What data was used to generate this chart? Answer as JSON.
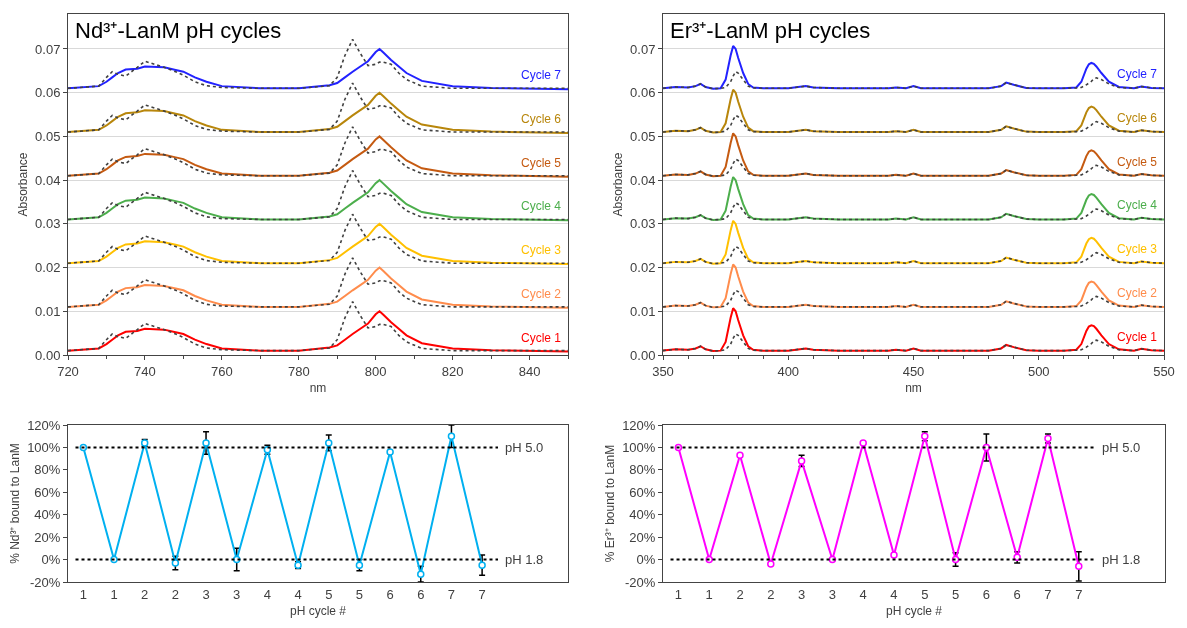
{
  "chart_data": [
    {
      "type": "line",
      "title": "Nd³⁺-LanM pH cycles",
      "xlabel": "nm",
      "ylabel": "Absorbance",
      "grid": "y",
      "legend": false,
      "line_style": "solid",
      "xlim": [
        720,
        850
      ],
      "xticks": [
        720,
        740,
        760,
        780,
        800,
        820,
        840
      ],
      "ylim": [
        0,
        0.078
      ],
      "yticks": [
        {
          "value": 0,
          "label": "0.00"
        },
        {
          "value": 0.01,
          "label": "0.01"
        },
        {
          "value": 0.02,
          "label": "0.02"
        },
        {
          "value": 0.03,
          "label": "0.03"
        },
        {
          "value": 0.04,
          "label": "0.04"
        },
        {
          "value": 0.05,
          "label": "0.05"
        },
        {
          "value": 0.06,
          "label": "0.06"
        },
        {
          "value": 0.07,
          "label": "0.07"
        }
      ],
      "x": [
        720,
        728,
        730,
        731.5,
        733,
        735,
        738,
        740,
        745,
        748,
        750,
        753,
        756,
        760,
        770,
        780,
        788,
        790,
        792,
        794,
        796,
        798,
        800,
        801,
        802,
        804,
        806,
        808,
        812,
        820,
        830,
        850
      ],
      "series": [
        {
          "name": "Cycle 1",
          "color": "#ff0000",
          "values": [
            0.001,
            0.0015,
            0.0025,
            0.0035,
            0.0045,
            0.0053,
            0.0055,
            0.006,
            0.0058,
            0.0052,
            0.0048,
            0.0035,
            0.0025,
            0.0015,
            0.001,
            0.001,
            0.0017,
            0.0022,
            0.0035,
            0.0048,
            0.006,
            0.0072,
            0.0093,
            0.01,
            0.0092,
            0.0075,
            0.006,
            0.0045,
            0.0027,
            0.0015,
            0.0011,
            0.0008
          ]
        },
        {
          "color": "#404040",
          "line_style": "dotted",
          "values": [
            0.001,
            0.0015,
            0.0035,
            0.0048,
            0.0042,
            0.0038,
            0.0058,
            0.0072,
            0.0058,
            0.0048,
            0.004,
            0.0025,
            0.0016,
            0.0012,
            0.001,
            0.001,
            0.0016,
            0.0035,
            0.0085,
            0.0122,
            0.009,
            0.0062,
            0.0065,
            0.007,
            0.007,
            0.0065,
            0.0045,
            0.003,
            0.0015,
            0.001,
            0.001,
            0.001
          ]
        },
        {
          "name": "Cycle 2",
          "color": "#ff8c4c",
          "values": [
            0.011,
            0.0115,
            0.0125,
            0.0135,
            0.0145,
            0.0153,
            0.0155,
            0.016,
            0.0158,
            0.0152,
            0.0148,
            0.0135,
            0.0125,
            0.0115,
            0.011,
            0.011,
            0.0117,
            0.0122,
            0.0135,
            0.0148,
            0.016,
            0.0172,
            0.0193,
            0.02,
            0.0192,
            0.0175,
            0.016,
            0.0145,
            0.0127,
            0.0115,
            0.0111,
            0.0108
          ]
        },
        {
          "color": "#404040",
          "line_style": "dotted",
          "values": [
            0.011,
            0.0115,
            0.0135,
            0.0148,
            0.0142,
            0.0138,
            0.0158,
            0.0172,
            0.0158,
            0.0148,
            0.014,
            0.0125,
            0.0116,
            0.0112,
            0.011,
            0.011,
            0.0116,
            0.0135,
            0.0185,
            0.0222,
            0.019,
            0.0162,
            0.0165,
            0.017,
            0.017,
            0.0165,
            0.0145,
            0.013,
            0.0115,
            0.011,
            0.011,
            0.011
          ]
        },
        {
          "name": "Cycle 3",
          "color": "#ffc000",
          "values": [
            0.021,
            0.0215,
            0.0225,
            0.0235,
            0.0245,
            0.0253,
            0.0255,
            0.026,
            0.0258,
            0.0252,
            0.0248,
            0.0235,
            0.0225,
            0.0215,
            0.021,
            0.021,
            0.0217,
            0.0222,
            0.0235,
            0.0248,
            0.026,
            0.0272,
            0.0293,
            0.03,
            0.0292,
            0.0275,
            0.026,
            0.0245,
            0.0227,
            0.0215,
            0.0211,
            0.0208
          ]
        },
        {
          "color": "#404040",
          "line_style": "dotted",
          "values": [
            0.021,
            0.0215,
            0.0235,
            0.0248,
            0.0242,
            0.0238,
            0.0258,
            0.0272,
            0.0258,
            0.0248,
            0.024,
            0.0225,
            0.0216,
            0.0212,
            0.021,
            0.021,
            0.0216,
            0.0235,
            0.0285,
            0.0322,
            0.029,
            0.0262,
            0.0265,
            0.027,
            0.027,
            0.0265,
            0.0245,
            0.023,
            0.0215,
            0.021,
            0.021,
            0.021
          ]
        },
        {
          "name": "Cycle 4",
          "color": "#4cae4c",
          "values": [
            0.031,
            0.0315,
            0.0325,
            0.0335,
            0.0345,
            0.0353,
            0.0355,
            0.036,
            0.0358,
            0.0352,
            0.0348,
            0.0335,
            0.0325,
            0.0315,
            0.031,
            0.031,
            0.0317,
            0.0322,
            0.0335,
            0.0348,
            0.036,
            0.0372,
            0.0393,
            0.04,
            0.0392,
            0.0375,
            0.036,
            0.0345,
            0.0327,
            0.0315,
            0.0311,
            0.0308
          ]
        },
        {
          "color": "#404040",
          "line_style": "dotted",
          "values": [
            0.031,
            0.0315,
            0.0335,
            0.0348,
            0.0342,
            0.0338,
            0.0358,
            0.0372,
            0.0358,
            0.0348,
            0.034,
            0.0325,
            0.0316,
            0.0312,
            0.031,
            0.031,
            0.0316,
            0.0335,
            0.0385,
            0.0422,
            0.039,
            0.0362,
            0.0365,
            0.037,
            0.037,
            0.0365,
            0.0345,
            0.033,
            0.0315,
            0.031,
            0.031,
            0.031
          ]
        },
        {
          "name": "Cycle 5",
          "color": "#c55a11",
          "values": [
            0.041,
            0.0415,
            0.0425,
            0.0435,
            0.0445,
            0.0453,
            0.0455,
            0.046,
            0.0458,
            0.0452,
            0.0448,
            0.0435,
            0.0425,
            0.0415,
            0.041,
            0.041,
            0.0417,
            0.0422,
            0.0435,
            0.0448,
            0.046,
            0.0472,
            0.0493,
            0.05,
            0.0492,
            0.0475,
            0.046,
            0.0445,
            0.0427,
            0.0415,
            0.0411,
            0.0408
          ]
        },
        {
          "color": "#404040",
          "line_style": "dotted",
          "values": [
            0.041,
            0.0415,
            0.0435,
            0.0448,
            0.0442,
            0.0438,
            0.0458,
            0.0472,
            0.0458,
            0.0448,
            0.044,
            0.0425,
            0.0416,
            0.0412,
            0.041,
            0.041,
            0.0416,
            0.0435,
            0.0485,
            0.0522,
            0.049,
            0.0462,
            0.0465,
            0.047,
            0.047,
            0.0465,
            0.0445,
            0.043,
            0.0415,
            0.041,
            0.041,
            0.041
          ]
        },
        {
          "name": "Cycle 6",
          "color": "#b8860b",
          "values": [
            0.051,
            0.0515,
            0.0525,
            0.0535,
            0.0545,
            0.0553,
            0.0555,
            0.056,
            0.0558,
            0.0552,
            0.0548,
            0.0535,
            0.0525,
            0.0515,
            0.051,
            0.051,
            0.0517,
            0.0522,
            0.0535,
            0.0548,
            0.056,
            0.0572,
            0.0593,
            0.06,
            0.0592,
            0.0575,
            0.056,
            0.0545,
            0.0527,
            0.0515,
            0.0511,
            0.0508
          ]
        },
        {
          "color": "#404040",
          "line_style": "dotted",
          "values": [
            0.051,
            0.0515,
            0.0535,
            0.0548,
            0.0542,
            0.0538,
            0.0558,
            0.0572,
            0.0558,
            0.0548,
            0.054,
            0.0525,
            0.0516,
            0.0512,
            0.051,
            0.051,
            0.0516,
            0.0535,
            0.0585,
            0.0622,
            0.059,
            0.0562,
            0.0565,
            0.057,
            0.057,
            0.0565,
            0.0545,
            0.053,
            0.0515,
            0.051,
            0.051,
            0.051
          ]
        },
        {
          "name": "Cycle 7",
          "color": "#2222ff",
          "values": [
            0.061,
            0.0615,
            0.0625,
            0.0635,
            0.0645,
            0.0653,
            0.0655,
            0.066,
            0.0658,
            0.0652,
            0.0648,
            0.0635,
            0.0625,
            0.0615,
            0.061,
            0.061,
            0.0617,
            0.0622,
            0.0635,
            0.0648,
            0.066,
            0.0672,
            0.0693,
            0.07,
            0.0692,
            0.0675,
            0.066,
            0.0645,
            0.0627,
            0.0615,
            0.0611,
            0.0608
          ]
        },
        {
          "color": "#404040",
          "line_style": "dotted",
          "values": [
            0.061,
            0.0615,
            0.0635,
            0.0648,
            0.0642,
            0.0638,
            0.0658,
            0.0672,
            0.0658,
            0.0648,
            0.064,
            0.0625,
            0.0616,
            0.0612,
            0.061,
            0.061,
            0.0616,
            0.0635,
            0.0685,
            0.0722,
            0.069,
            0.0662,
            0.0665,
            0.067,
            0.067,
            0.0665,
            0.0645,
            0.063,
            0.0615,
            0.061,
            0.061,
            0.061
          ]
        }
      ]
    },
    {
      "type": "line",
      "title": "Er³⁺-LanM pH cycles",
      "xlabel": "nm",
      "ylabel": "Absorbance",
      "grid": "y",
      "legend": false,
      "line_style": "solid",
      "xlim": [
        350,
        550
      ],
      "xticks": [
        350,
        400,
        450,
        500,
        550
      ],
      "ylim": [
        0,
        0.078
      ],
      "yticks": [
        {
          "value": 0,
          "label": "0.00"
        },
        {
          "value": 0.01,
          "label": "0.01"
        },
        {
          "value": 0.02,
          "label": "0.02"
        },
        {
          "value": 0.03,
          "label": "0.03"
        },
        {
          "value": 0.04,
          "label": "0.04"
        },
        {
          "value": 0.05,
          "label": "0.05"
        },
        {
          "value": 0.06,
          "label": "0.06"
        },
        {
          "value": 0.07,
          "label": "0.07"
        }
      ],
      "x": [
        350,
        355,
        360,
        363,
        365,
        367,
        370,
        373,
        375,
        377,
        378,
        379,
        380,
        382,
        384,
        386,
        390,
        400,
        407,
        410,
        420,
        440,
        443,
        447,
        450,
        453,
        460,
        480,
        485,
        487,
        490,
        495,
        500,
        510,
        515,
        517,
        519,
        520,
        521,
        522,
        523,
        525,
        528,
        532,
        538,
        541,
        545,
        550
      ],
      "series": [
        {
          "name": "Cycle 1",
          "color": "#ff0000",
          "values": [
            0.001,
            0.0013,
            0.0012,
            0.0015,
            0.002,
            0.0013,
            0.0009,
            0.001,
            0.003,
            0.0085,
            0.0107,
            0.01,
            0.008,
            0.0045,
            0.002,
            0.0012,
            0.001,
            0.001,
            0.0015,
            0.0012,
            0.001,
            0.001,
            0.0012,
            0.001,
            0.0015,
            0.001,
            0.001,
            0.001,
            0.0015,
            0.0023,
            0.0018,
            0.0011,
            0.001,
            0.001,
            0.0012,
            0.0025,
            0.0055,
            0.0065,
            0.0068,
            0.0066,
            0.006,
            0.0045,
            0.0025,
            0.0013,
            0.001,
            0.0014,
            0.0011,
            0.001
          ]
        },
        {
          "color": "#404040",
          "line_style": "dotted",
          "values": [
            0.001,
            0.0013,
            0.0012,
            0.0015,
            0.002,
            0.0013,
            0.0009,
            0.001,
            0.0012,
            0.0025,
            0.0038,
            0.0048,
            0.0045,
            0.003,
            0.0015,
            0.0011,
            0.001,
            0.001,
            0.0015,
            0.0012,
            0.001,
            0.001,
            0.0012,
            0.001,
            0.0015,
            0.001,
            0.001,
            0.001,
            0.0015,
            0.0023,
            0.0018,
            0.0011,
            0.001,
            0.001,
            0.0011,
            0.0012,
            0.0018,
            0.0022,
            0.0026,
            0.0032,
            0.0034,
            0.003,
            0.002,
            0.0012,
            0.001,
            0.0014,
            0.0011,
            0.001
          ]
        },
        {
          "name": "Cycle 2",
          "color": "#ff8c4c",
          "values": [
            0.011,
            0.0113,
            0.0112,
            0.0115,
            0.012,
            0.0113,
            0.0109,
            0.011,
            0.013,
            0.0185,
            0.0207,
            0.02,
            0.018,
            0.0145,
            0.012,
            0.0112,
            0.011,
            0.011,
            0.0115,
            0.0112,
            0.011,
            0.011,
            0.0112,
            0.011,
            0.0115,
            0.011,
            0.011,
            0.011,
            0.0115,
            0.0123,
            0.0118,
            0.0111,
            0.011,
            0.011,
            0.0112,
            0.0125,
            0.0155,
            0.0165,
            0.0168,
            0.0166,
            0.016,
            0.0145,
            0.0125,
            0.0113,
            0.011,
            0.0114,
            0.0111,
            0.011
          ]
        },
        {
          "color": "#404040",
          "line_style": "dotted",
          "values": [
            0.011,
            0.0113,
            0.0112,
            0.0115,
            0.012,
            0.0113,
            0.0109,
            0.011,
            0.0112,
            0.0125,
            0.0138,
            0.0148,
            0.0145,
            0.013,
            0.0115,
            0.0111,
            0.011,
            0.011,
            0.0115,
            0.0112,
            0.011,
            0.011,
            0.0112,
            0.011,
            0.0115,
            0.011,
            0.011,
            0.011,
            0.0115,
            0.0123,
            0.0118,
            0.0111,
            0.011,
            0.011,
            0.0111,
            0.0112,
            0.0118,
            0.0122,
            0.0126,
            0.0132,
            0.0134,
            0.013,
            0.012,
            0.0112,
            0.011,
            0.0114,
            0.0111,
            0.011
          ]
        },
        {
          "name": "Cycle 3",
          "color": "#ffc000",
          "values": [
            0.021,
            0.0213,
            0.0212,
            0.0215,
            0.022,
            0.0213,
            0.0209,
            0.021,
            0.023,
            0.0285,
            0.0307,
            0.03,
            0.028,
            0.0245,
            0.022,
            0.0212,
            0.021,
            0.021,
            0.0215,
            0.0212,
            0.021,
            0.021,
            0.0212,
            0.021,
            0.0215,
            0.021,
            0.021,
            0.021,
            0.0215,
            0.0223,
            0.0218,
            0.0211,
            0.021,
            0.021,
            0.0212,
            0.0225,
            0.0255,
            0.0265,
            0.0268,
            0.0266,
            0.026,
            0.0245,
            0.0225,
            0.0213,
            0.021,
            0.0214,
            0.0211,
            0.021
          ]
        },
        {
          "color": "#404040",
          "line_style": "dotted",
          "values": [
            0.021,
            0.0213,
            0.0212,
            0.0215,
            0.022,
            0.0213,
            0.0209,
            0.021,
            0.0212,
            0.0225,
            0.0238,
            0.0248,
            0.0245,
            0.023,
            0.0215,
            0.0211,
            0.021,
            0.021,
            0.0215,
            0.0212,
            0.021,
            0.021,
            0.0212,
            0.021,
            0.0215,
            0.021,
            0.021,
            0.021,
            0.0215,
            0.0223,
            0.0218,
            0.0211,
            0.021,
            0.021,
            0.0211,
            0.0212,
            0.0218,
            0.0222,
            0.0226,
            0.0232,
            0.0234,
            0.023,
            0.022,
            0.0212,
            0.021,
            0.0214,
            0.0211,
            0.021
          ]
        },
        {
          "name": "Cycle 4",
          "color": "#4cae4c",
          "values": [
            0.031,
            0.0313,
            0.0312,
            0.0315,
            0.032,
            0.0313,
            0.0309,
            0.031,
            0.033,
            0.0385,
            0.0407,
            0.04,
            0.038,
            0.0345,
            0.032,
            0.0312,
            0.031,
            0.031,
            0.0315,
            0.0312,
            0.031,
            0.031,
            0.0312,
            0.031,
            0.0315,
            0.031,
            0.031,
            0.031,
            0.0315,
            0.0323,
            0.0318,
            0.0311,
            0.031,
            0.031,
            0.0312,
            0.0325,
            0.0355,
            0.0365,
            0.0368,
            0.0366,
            0.036,
            0.0345,
            0.0325,
            0.0313,
            0.031,
            0.0314,
            0.0311,
            0.031
          ]
        },
        {
          "color": "#404040",
          "line_style": "dotted",
          "values": [
            0.031,
            0.0313,
            0.0312,
            0.0315,
            0.032,
            0.0313,
            0.0309,
            0.031,
            0.0312,
            0.0325,
            0.0338,
            0.0348,
            0.0345,
            0.033,
            0.0315,
            0.0311,
            0.031,
            0.031,
            0.0315,
            0.0312,
            0.031,
            0.031,
            0.0312,
            0.031,
            0.0315,
            0.031,
            0.031,
            0.031,
            0.0315,
            0.0323,
            0.0318,
            0.0311,
            0.031,
            0.031,
            0.0311,
            0.0312,
            0.0318,
            0.0322,
            0.0326,
            0.0332,
            0.0334,
            0.033,
            0.032,
            0.0312,
            0.031,
            0.0314,
            0.0311,
            0.031
          ]
        },
        {
          "name": "Cycle 5",
          "color": "#c55a11",
          "values": [
            0.041,
            0.0413,
            0.0412,
            0.0415,
            0.042,
            0.0413,
            0.0409,
            0.041,
            0.043,
            0.0485,
            0.0507,
            0.05,
            0.048,
            0.0445,
            0.042,
            0.0412,
            0.041,
            0.041,
            0.0415,
            0.0412,
            0.041,
            0.041,
            0.0412,
            0.041,
            0.0415,
            0.041,
            0.041,
            0.041,
            0.0415,
            0.0423,
            0.0418,
            0.0411,
            0.041,
            0.041,
            0.0412,
            0.0425,
            0.0455,
            0.0465,
            0.0468,
            0.0466,
            0.046,
            0.0445,
            0.0425,
            0.0413,
            0.041,
            0.0414,
            0.0411,
            0.041
          ]
        },
        {
          "color": "#404040",
          "line_style": "dotted",
          "values": [
            0.041,
            0.0413,
            0.0412,
            0.0415,
            0.042,
            0.0413,
            0.0409,
            0.041,
            0.0412,
            0.0425,
            0.0438,
            0.0448,
            0.0445,
            0.043,
            0.0415,
            0.0411,
            0.041,
            0.041,
            0.0415,
            0.0412,
            0.041,
            0.041,
            0.0412,
            0.041,
            0.0415,
            0.041,
            0.041,
            0.041,
            0.0415,
            0.0423,
            0.0418,
            0.0411,
            0.041,
            0.041,
            0.0411,
            0.0412,
            0.0418,
            0.0422,
            0.0426,
            0.0432,
            0.0434,
            0.043,
            0.042,
            0.0412,
            0.041,
            0.0414,
            0.0411,
            0.041
          ]
        },
        {
          "name": "Cycle 6",
          "color": "#b8860b",
          "values": [
            0.051,
            0.0513,
            0.0512,
            0.0515,
            0.052,
            0.0513,
            0.0509,
            0.051,
            0.053,
            0.0585,
            0.0607,
            0.06,
            0.058,
            0.0545,
            0.052,
            0.0512,
            0.051,
            0.051,
            0.0515,
            0.0512,
            0.051,
            0.051,
            0.0512,
            0.051,
            0.0515,
            0.051,
            0.051,
            0.051,
            0.0515,
            0.0523,
            0.0518,
            0.0511,
            0.051,
            0.051,
            0.0512,
            0.0525,
            0.0555,
            0.0565,
            0.0568,
            0.0566,
            0.056,
            0.0545,
            0.0525,
            0.0513,
            0.051,
            0.0514,
            0.0511,
            0.051
          ]
        },
        {
          "color": "#404040",
          "line_style": "dotted",
          "values": [
            0.051,
            0.0513,
            0.0512,
            0.0515,
            0.052,
            0.0513,
            0.0509,
            0.051,
            0.0512,
            0.0525,
            0.0538,
            0.0548,
            0.0545,
            0.053,
            0.0515,
            0.0511,
            0.051,
            0.051,
            0.0515,
            0.0512,
            0.051,
            0.051,
            0.0512,
            0.051,
            0.0515,
            0.051,
            0.051,
            0.051,
            0.0515,
            0.0523,
            0.0518,
            0.0511,
            0.051,
            0.051,
            0.0511,
            0.0512,
            0.0518,
            0.0522,
            0.0526,
            0.0532,
            0.0534,
            0.053,
            0.052,
            0.0512,
            0.051,
            0.0514,
            0.0511,
            0.051
          ]
        },
        {
          "name": "Cycle 7",
          "color": "#2222ff",
          "values": [
            0.061,
            0.0613,
            0.0612,
            0.0615,
            0.062,
            0.0613,
            0.0609,
            0.061,
            0.063,
            0.0685,
            0.0707,
            0.07,
            0.068,
            0.0645,
            0.062,
            0.0612,
            0.061,
            0.061,
            0.0615,
            0.0612,
            0.061,
            0.061,
            0.0612,
            0.061,
            0.0615,
            0.061,
            0.061,
            0.061,
            0.0615,
            0.0623,
            0.0618,
            0.0611,
            0.061,
            0.061,
            0.0612,
            0.0625,
            0.0655,
            0.0665,
            0.0668,
            0.0666,
            0.066,
            0.0645,
            0.0625,
            0.0613,
            0.061,
            0.0614,
            0.0611,
            0.061
          ]
        },
        {
          "color": "#404040",
          "line_style": "dotted",
          "values": [
            0.061,
            0.0613,
            0.0612,
            0.0615,
            0.062,
            0.0613,
            0.0609,
            0.061,
            0.0612,
            0.0625,
            0.0638,
            0.0648,
            0.0645,
            0.063,
            0.0615,
            0.0611,
            0.061,
            0.061,
            0.0615,
            0.0612,
            0.061,
            0.061,
            0.0612,
            0.061,
            0.0615,
            0.061,
            0.061,
            0.061,
            0.0615,
            0.0623,
            0.0618,
            0.0611,
            0.061,
            0.061,
            0.0611,
            0.0612,
            0.0618,
            0.0622,
            0.0626,
            0.0632,
            0.0634,
            0.063,
            0.062,
            0.0612,
            0.061,
            0.0614,
            0.0611,
            0.061
          ]
        }
      ]
    },
    {
      "type": "line",
      "xlabel": "pH cycle #",
      "ylabel": "% Nd³⁺ bound to LanM",
      "grid": false,
      "legend": false,
      "marker": "circle",
      "line_style": "solid",
      "ylim": [
        -20,
        120
      ],
      "yticks": [
        {
          "value": -20,
          "label": "-20%"
        },
        {
          "value": 0,
          "label": "0%"
        },
        {
          "value": 20,
          "label": "20%"
        },
        {
          "value": 40,
          "label": "40%"
        },
        {
          "value": 60,
          "label": "60%"
        },
        {
          "value": 80,
          "label": "80%"
        },
        {
          "value": 100,
          "label": "100%"
        },
        {
          "value": 120,
          "label": "120%"
        }
      ],
      "categories": [
        "1",
        "1",
        "2",
        "2",
        "3",
        "3",
        "4",
        "4",
        "5",
        "5",
        "6",
        "6",
        "7",
        "7"
      ],
      "series": [
        {
          "color": "#00b0f0",
          "values": [
            100,
            0,
            104,
            -3,
            104,
            0,
            98,
            -5,
            104,
            -5,
            96,
            -13,
            110,
            -5
          ],
          "errors": [
            null,
            null,
            3,
            6,
            10,
            10,
            4,
            3,
            7,
            5,
            null,
            7,
            10,
            9
          ]
        }
      ],
      "ref_lines": [
        {
          "axis": "y",
          "value": 100,
          "label": "pH 5.0",
          "color": "#000000",
          "line_style": "dotted"
        },
        {
          "axis": "y",
          "value": 0,
          "label": "pH 1.8",
          "color": "#000000",
          "line_style": "dotted"
        }
      ]
    },
    {
      "type": "line",
      "xlabel": "pH cycle #",
      "ylabel": "% Er³⁺ bound to LanM",
      "grid": false,
      "legend": false,
      "marker": "circle",
      "line_style": "solid",
      "ylim": [
        -20,
        120
      ],
      "yticks": [
        {
          "value": -20,
          "label": "-20%"
        },
        {
          "value": 0,
          "label": "0%"
        },
        {
          "value": 20,
          "label": "20%"
        },
        {
          "value": 40,
          "label": "40%"
        },
        {
          "value": 60,
          "label": "60%"
        },
        {
          "value": 80,
          "label": "80%"
        },
        {
          "value": 100,
          "label": "100%"
        },
        {
          "value": 120,
          "label": "120%"
        }
      ],
      "categories": [
        "1",
        "1",
        "2",
        "2",
        "3",
        "3",
        "4",
        "4",
        "5",
        "5",
        "6",
        "6",
        "7",
        "7"
      ],
      "series": [
        {
          "color": "#ff00ff",
          "values": [
            100,
            0,
            93,
            -4,
            88,
            0,
            104,
            4,
            110,
            0,
            100,
            2,
            108,
            -6
          ],
          "errors": [
            null,
            null,
            null,
            null,
            5,
            null,
            null,
            null,
            4,
            6,
            12,
            5,
            4,
            13
          ]
        }
      ],
      "ref_lines": [
        {
          "axis": "y",
          "value": 100,
          "label": "pH 5.0",
          "color": "#000000",
          "line_style": "dotted"
        },
        {
          "axis": "y",
          "value": 0,
          "label": "pH 1.8",
          "color": "#000000",
          "line_style": "dotted"
        }
      ]
    }
  ]
}
